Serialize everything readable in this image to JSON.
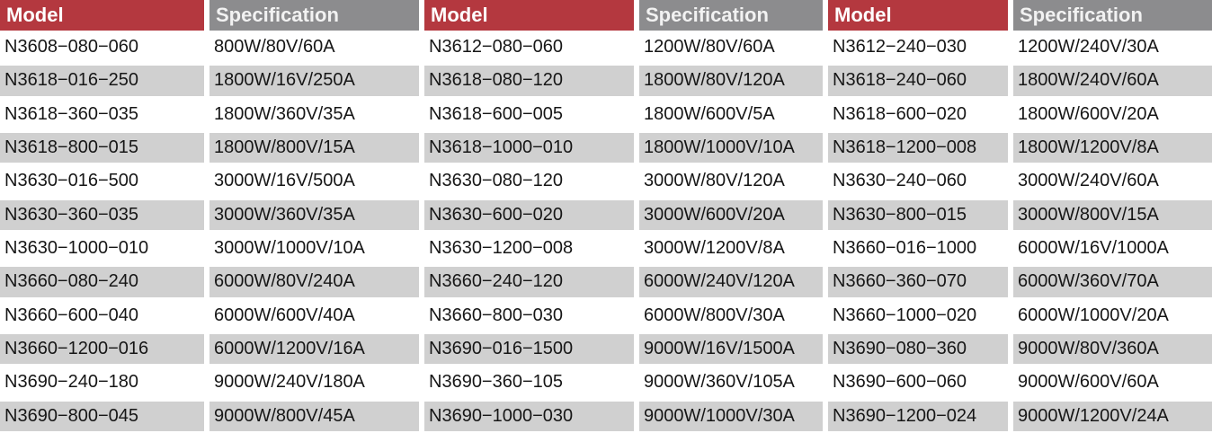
{
  "colors": {
    "model_header_bg": "#B4383F",
    "spec_header_bg": "#8C8C8E",
    "stripe_bg": "#D0D0D0",
    "header_text": "#FFFFFF",
    "cell_text": "#161616"
  },
  "table": {
    "columns": [
      {
        "label": "Model",
        "kind": "model"
      },
      {
        "label": "Specification",
        "kind": "spec"
      },
      {
        "label": "Model",
        "kind": "model"
      },
      {
        "label": "Specification",
        "kind": "spec"
      },
      {
        "label": "Model",
        "kind": "model"
      },
      {
        "label": "Specification",
        "kind": "spec"
      }
    ],
    "rows": [
      [
        "N3608−080−060",
        "800W/80V/60A",
        "N3612−080−060",
        "1200W/80V/60A",
        "N3612−240−030",
        "1200W/240V/30A"
      ],
      [
        "N3618−016−250",
        "1800W/16V/250A",
        "N3618−080−120",
        "1800W/80V/120A",
        "N3618−240−060",
        "1800W/240V/60A"
      ],
      [
        "N3618−360−035",
        "1800W/360V/35A",
        "N3618−600−005",
        "1800W/600V/5A",
        "N3618−600−020",
        "1800W/600V/20A"
      ],
      [
        "N3618−800−015",
        "1800W/800V/15A",
        "N3618−1000−010",
        "1800W/1000V/10A",
        "N3618−1200−008",
        "1800W/1200V/8A"
      ],
      [
        "N3630−016−500",
        "3000W/16V/500A",
        "N3630−080−120",
        "3000W/80V/120A",
        "N3630−240−060",
        "3000W/240V/60A"
      ],
      [
        "N3630−360−035",
        "3000W/360V/35A",
        "N3630−600−020",
        "3000W/600V/20A",
        "N3630−800−015",
        "3000W/800V/15A"
      ],
      [
        "N3630−1000−010",
        "3000W/1000V/10A",
        "N3630−1200−008",
        "3000W/1200V/8A",
        "N3660−016−1000",
        "6000W/16V/1000A"
      ],
      [
        "N3660−080−240",
        "6000W/80V/240A",
        "N3660−240−120",
        "6000W/240V/120A",
        "N3660−360−070",
        "6000W/360V/70A"
      ],
      [
        "N3660−600−040",
        "6000W/600V/40A",
        "N3660−800−030",
        "6000W/800V/30A",
        "N3660−1000−020",
        "6000W/1000V/20A"
      ],
      [
        "N3660−1200−016",
        "6000W/1200V/16A",
        "N3690−016−1500",
        "9000W/16V/1500A",
        "N3690−080−360",
        "9000W/80V/360A"
      ],
      [
        "N3690−240−180",
        "9000W/240V/180A",
        "N3690−360−105",
        "9000W/360V/105A",
        "N3690−600−060",
        "9000W/600V/60A"
      ],
      [
        "N3690−800−045",
        "9000W/800V/45A",
        "N3690−1000−030",
        "9000W/1000V/30A",
        "N3690−1200−024",
        "9000W/1200V/24A"
      ]
    ]
  }
}
